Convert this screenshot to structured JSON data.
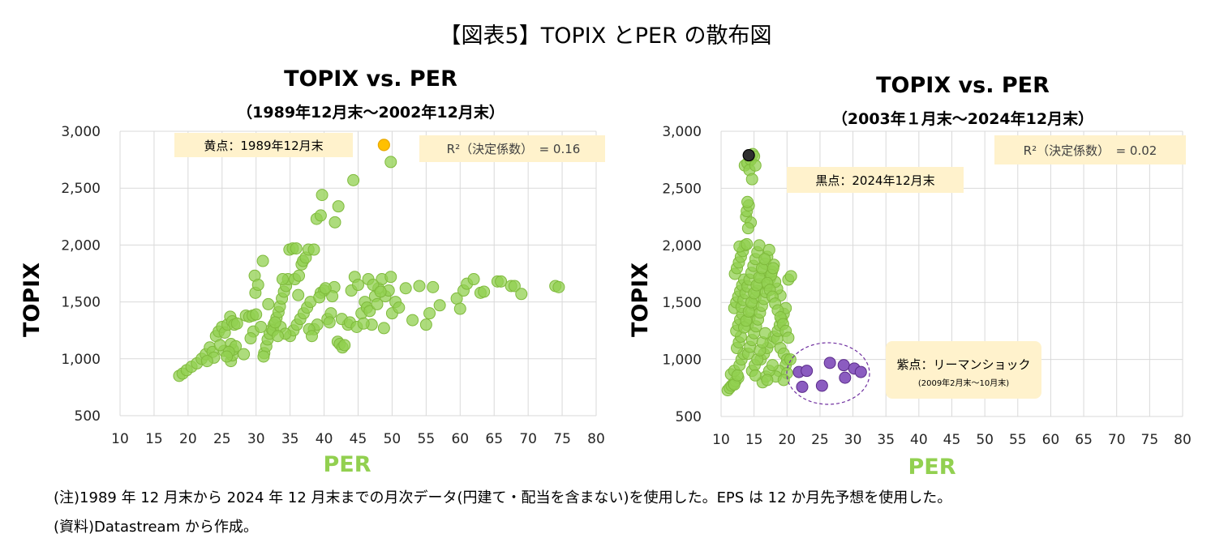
{
  "page_title": "【図表5】TOPIX とPER の散布図",
  "notes": [
    "(注)1989 年 12 月末から 2024 年 12 月末までの月次データ(円建て・配当を含まない)を使用した。EPS は 12 か月先予想を使用した。",
    "(資料)Datastream から作成。"
  ],
  "colors": {
    "green": "#92D050",
    "green_stroke": "#7FBA3C",
    "yellow": "#FFC000",
    "purple": "#7030A0",
    "black": "#000000",
    "label_bg": "#FFF2CC"
  },
  "chart_data": [
    {
      "type": "scatter",
      "title": "TOPIX vs. PER",
      "subtitle": "（1989年12月末～2002年12月末）",
      "xlabel": "PER",
      "ylabel": "TOPIX",
      "xlim": [
        10,
        80
      ],
      "ylim": [
        500,
        3000
      ],
      "xticks": [
        "10",
        "15",
        "20",
        "25",
        "30",
        "35",
        "40",
        "45",
        "50",
        "55",
        "60",
        "65",
        "70",
        "75",
        "80"
      ],
      "yticks": [
        "500",
        "1,000",
        "1,500",
        "2,000",
        "2,500",
        "3,000"
      ],
      "grid": true,
      "annotations": [
        {
          "text": "黄点：1989年12月末"
        },
        {
          "text": "R²（決定係数）　= 0.16"
        }
      ],
      "highlight": {
        "name": "黄点",
        "color": "#FFC000",
        "points": [
          [
            48.8,
            2880
          ]
        ]
      },
      "points": [
        [
          18.7,
          850
        ],
        [
          19.2,
          870
        ],
        [
          19.8,
          900
        ],
        [
          20.5,
          930
        ],
        [
          21.3,
          960
        ],
        [
          22.0,
          1000
        ],
        [
          22.6,
          1040
        ],
        [
          23.2,
          1100
        ],
        [
          23.6,
          1060
        ],
        [
          24.1,
          1200
        ],
        [
          24.5,
          1240
        ],
        [
          25.0,
          1280
        ],
        [
          25.4,
          1230
        ],
        [
          25.8,
          1300
        ],
        [
          26.2,
          1370
        ],
        [
          26.5,
          1330
        ],
        [
          26.8,
          1300
        ],
        [
          27.2,
          1310
        ],
        [
          26.3,
          980
        ],
        [
          26.5,
          1030
        ],
        [
          26.6,
          1080
        ],
        [
          26.3,
          1130
        ],
        [
          25.3,
          1070
        ],
        [
          28.5,
          1380
        ],
        [
          29.0,
          1370
        ],
        [
          29.5,
          1380
        ],
        [
          30.0,
          1390
        ],
        [
          29.6,
          1240
        ],
        [
          29.9,
          1580
        ],
        [
          29.8,
          1730
        ],
        [
          30.3,
          1650
        ],
        [
          31.0,
          1860
        ],
        [
          31.2,
          1050
        ],
        [
          31.5,
          1110
        ],
        [
          31.7,
          1170
        ],
        [
          32.0,
          1220
        ],
        [
          32.3,
          1260
        ],
        [
          32.6,
          1300
        ],
        [
          33.0,
          1360
        ],
        [
          33.3,
          1410
        ],
        [
          33.5,
          1460
        ],
        [
          33.8,
          1530
        ],
        [
          34.1,
          1590
        ],
        [
          34.4,
          1640
        ],
        [
          34.7,
          1700
        ],
        [
          33.9,
          1700
        ],
        [
          34.9,
          1960
        ],
        [
          35.4,
          1970
        ],
        [
          35.9,
          1970
        ],
        [
          36.7,
          1830
        ],
        [
          36.9,
          1860
        ],
        [
          37.3,
          1890
        ],
        [
          37.7,
          1960
        ],
        [
          38.5,
          1960
        ],
        [
          38.9,
          2230
        ],
        [
          39.5,
          2260
        ],
        [
          39.7,
          2440
        ],
        [
          41.6,
          2200
        ],
        [
          42.1,
          2340
        ],
        [
          44.3,
          2570
        ],
        [
          49.8,
          2730
        ],
        [
          35.0,
          1200
        ],
        [
          35.5,
          1250
        ],
        [
          36.0,
          1300
        ],
        [
          36.5,
          1350
        ],
        [
          37.0,
          1400
        ],
        [
          37.5,
          1450
        ],
        [
          38.0,
          1500
        ],
        [
          38.5,
          1260
        ],
        [
          39.0,
          1300
        ],
        [
          39.5,
          1580
        ],
        [
          40.0,
          1600
        ],
        [
          40.5,
          1350
        ],
        [
          41.0,
          1400
        ],
        [
          41.5,
          1630
        ],
        [
          42.0,
          1150
        ],
        [
          42.3,
          1130
        ],
        [
          42.7,
          1100
        ],
        [
          43.0,
          1120
        ],
        [
          43.5,
          1300
        ],
        [
          44.0,
          1600
        ],
        [
          44.5,
          1720
        ],
        [
          45.0,
          1650
        ],
        [
          45.5,
          1400
        ],
        [
          46.0,
          1500
        ],
        [
          46.3,
          1450
        ],
        [
          46.5,
          1700
        ],
        [
          47.0,
          1300
        ],
        [
          47.5,
          1550
        ],
        [
          48.0,
          1620
        ],
        [
          48.5,
          1700
        ],
        [
          49.0,
          1550
        ],
        [
          49.5,
          1600
        ],
        [
          49.8,
          1720
        ],
        [
          50.0,
          1400
        ],
        [
          50.5,
          1500
        ],
        [
          51.0,
          1450
        ],
        [
          52.0,
          1620
        ],
        [
          53.0,
          1340
        ],
        [
          54.0,
          1640
        ],
        [
          55.0,
          1300
        ],
        [
          55.5,
          1400
        ],
        [
          56.0,
          1630
        ],
        [
          57.0,
          1470
        ],
        [
          59.5,
          1530
        ],
        [
          60.0,
          1440
        ],
        [
          60.5,
          1600
        ],
        [
          61.0,
          1660
        ],
        [
          62.0,
          1700
        ],
        [
          63.0,
          1580
        ],
        [
          63.5,
          1590
        ],
        [
          65.5,
          1680
        ],
        [
          66.0,
          1680
        ],
        [
          67.5,
          1640
        ],
        [
          68.0,
          1640
        ],
        [
          69.0,
          1570
        ],
        [
          74.0,
          1640
        ],
        [
          74.5,
          1630
        ],
        [
          32.5,
          1250
        ],
        [
          33.6,
          1280
        ],
        [
          34.3,
          1220
        ],
        [
          36.2,
          1560
        ],
        [
          37.8,
          1260
        ],
        [
          38.2,
          1200
        ],
        [
          40.8,
          1320
        ],
        [
          41.2,
          1550
        ],
        [
          42.6,
          1350
        ],
        [
          43.8,
          1320
        ],
        [
          44.8,
          1280
        ],
        [
          46.7,
          1420
        ],
        [
          47.8,
          1480
        ],
        [
          48.8,
          1270
        ],
        [
          31.8,
          1480
        ],
        [
          32.8,
          1320
        ],
        [
          33.2,
          1200
        ],
        [
          35.7,
          1700
        ],
        [
          36.3,
          1730
        ],
        [
          39.3,
          1540
        ],
        [
          40.2,
          1620
        ],
        [
          45.8,
          1310
        ],
        [
          47.2,
          1650
        ],
        [
          48.3,
          1590
        ],
        [
          28.2,
          1040
        ],
        [
          30.7,
          1280
        ],
        [
          31.1,
          1020
        ],
        [
          29.2,
          1180
        ],
        [
          27.0,
          1110
        ],
        [
          26.0,
          1060
        ],
        [
          25.7,
          1020
        ],
        [
          24.7,
          1120
        ],
        [
          23.8,
          1010
        ],
        [
          22.8,
          980
        ]
      ]
    },
    {
      "type": "scatter",
      "title": "TOPIX vs. PER",
      "subtitle": "（2003年１月末～2024年12月末）",
      "xlabel": "PER",
      "ylabel": "TOPIX",
      "xlim": [
        10,
        80
      ],
      "ylim": [
        500,
        3000
      ],
      "xticks": [
        "10",
        "15",
        "20",
        "25",
        "30",
        "35",
        "40",
        "45",
        "50",
        "55",
        "60",
        "65",
        "70",
        "75",
        "80"
      ],
      "yticks": [
        "500",
        "1,000",
        "1,500",
        "2,000",
        "2,500",
        "3,000"
      ],
      "grid": true,
      "annotations": [
        {
          "text": "R²（決定係数）　= 0.02"
        },
        {
          "text": "黒点：2024年12月末"
        },
        {
          "text": "紫点：リーマンショック"
        },
        {
          "text": "(2009年2月末～10月末)"
        }
      ],
      "highlight": {
        "name": "黒点",
        "color": "#2F2F2F",
        "points": [
          [
            14.2,
            2790
          ]
        ]
      },
      "purple_series": {
        "name": "紫点",
        "points": [
          [
            21.8,
            890
          ],
          [
            23.0,
            900
          ],
          [
            22.3,
            760
          ],
          [
            25.3,
            770
          ],
          [
            26.5,
            970
          ],
          [
            28.6,
            950
          ],
          [
            28.8,
            840
          ],
          [
            30.2,
            920
          ],
          [
            31.2,
            890
          ]
        ]
      },
      "points": [
        [
          11.0,
          730
        ],
        [
          11.3,
          750
        ],
        [
          11.6,
          770
        ],
        [
          11.9,
          790
        ],
        [
          12.2,
          810
        ],
        [
          12.6,
          840
        ],
        [
          11.5,
          870
        ],
        [
          12.0,
          900
        ],
        [
          12.8,
          950
        ],
        [
          13.1,
          1000
        ],
        [
          13.4,
          1050
        ],
        [
          12.4,
          1100
        ],
        [
          12.7,
          1150
        ],
        [
          13.0,
          1200
        ],
        [
          12.3,
          1250
        ],
        [
          12.6,
          1300
        ],
        [
          12.9,
          1350
        ],
        [
          13.2,
          1400
        ],
        [
          12.0,
          1450
        ],
        [
          12.3,
          1500
        ],
        [
          12.6,
          1550
        ],
        [
          12.9,
          1600
        ],
        [
          13.2,
          1650
        ],
        [
          13.5,
          1700
        ],
        [
          12.1,
          1750
        ],
        [
          12.4,
          1800
        ],
        [
          12.7,
          1850
        ],
        [
          13.0,
          1900
        ],
        [
          13.3,
          1950
        ],
        [
          13.6,
          2000
        ],
        [
          12.8,
          1990
        ],
        [
          13.9,
          2010
        ],
        [
          13.1,
          1460
        ],
        [
          13.4,
          1520
        ],
        [
          13.7,
          1580
        ],
        [
          14.0,
          1640
        ],
        [
          14.3,
          1700
        ],
        [
          14.6,
          1760
        ],
        [
          14.9,
          1820
        ],
        [
          15.2,
          1880
        ],
        [
          15.5,
          1940
        ],
        [
          15.8,
          2000
        ],
        [
          14.0,
          1300
        ],
        [
          14.3,
          1360
        ],
        [
          14.6,
          1420
        ],
        [
          14.9,
          1480
        ],
        [
          15.2,
          1540
        ],
        [
          15.5,
          1600
        ],
        [
          15.8,
          1660
        ],
        [
          16.1,
          1720
        ],
        [
          16.4,
          1780
        ],
        [
          16.7,
          1840
        ],
        [
          17.0,
          1900
        ],
        [
          17.3,
          1960
        ],
        [
          14.1,
          1050
        ],
        [
          14.4,
          1110
        ],
        [
          14.7,
          1170
        ],
        [
          15.0,
          1230
        ],
        [
          15.3,
          1290
        ],
        [
          15.6,
          1350
        ],
        [
          15.9,
          1410
        ],
        [
          16.2,
          1470
        ],
        [
          16.5,
          1530
        ],
        [
          16.8,
          1590
        ],
        [
          17.1,
          1650
        ],
        [
          17.4,
          1710
        ],
        [
          17.7,
          1770
        ],
        [
          18.0,
          1830
        ],
        [
          13.8,
          2250
        ],
        [
          13.9,
          2300
        ],
        [
          14.2,
          2350
        ],
        [
          14.0,
          2380
        ],
        [
          14.5,
          2200
        ],
        [
          14.1,
          2150
        ],
        [
          13.6,
          2700
        ],
        [
          14.0,
          2720
        ],
        [
          14.5,
          2750
        ],
        [
          14.8,
          2800
        ],
        [
          15.0,
          2780
        ],
        [
          14.3,
          2660
        ],
        [
          14.7,
          2580
        ],
        [
          15.2,
          2700
        ],
        [
          16.0,
          1000
        ],
        [
          16.5,
          1050
        ],
        [
          17.0,
          1100
        ],
        [
          17.5,
          1150
        ],
        [
          18.0,
          1200
        ],
        [
          18.5,
          1180
        ],
        [
          19.0,
          1100
        ],
        [
          19.5,
          1050
        ],
        [
          20.0,
          1000
        ],
        [
          19.8,
          950
        ],
        [
          18.8,
          900
        ],
        [
          18.3,
          850
        ],
        [
          16.3,
          800
        ],
        [
          16.8,
          850
        ],
        [
          17.3,
          900
        ],
        [
          17.8,
          950
        ],
        [
          18.6,
          1250
        ],
        [
          18.9,
          1300
        ],
        [
          19.2,
          1350
        ],
        [
          19.5,
          1400
        ],
        [
          19.8,
          1450
        ],
        [
          20.2,
          1700
        ],
        [
          20.6,
          1730
        ],
        [
          19.0,
          1560
        ],
        [
          18.5,
          1620
        ],
        [
          18.2,
          1680
        ],
        [
          17.6,
          1740
        ],
        [
          17.9,
          1800
        ],
        [
          14.7,
          900
        ],
        [
          15.1,
          950
        ],
        [
          15.5,
          1000
        ],
        [
          15.9,
          1080
        ],
        [
          16.3,
          1150
        ],
        [
          16.7,
          1230
        ],
        [
          12.0,
          780
        ],
        [
          12.5,
          860
        ],
        [
          13.5,
          1280
        ],
        [
          13.8,
          1340
        ],
        [
          14.2,
          1420
        ],
        [
          14.6,
          1500
        ],
        [
          15.0,
          1580
        ],
        [
          15.4,
          1650
        ],
        [
          15.8,
          1720
        ],
        [
          16.2,
          1800
        ],
        [
          16.6,
          1880
        ],
        [
          17.0,
          1670
        ],
        [
          17.4,
          1610
        ],
        [
          17.8,
          1550
        ],
        [
          18.2,
          1490
        ],
        [
          18.6,
          1430
        ],
        [
          19.0,
          1370
        ],
        [
          19.4,
          1310
        ],
        [
          19.8,
          1250
        ],
        [
          20.2,
          1190
        ],
        [
          20.5,
          1000
        ],
        [
          20.0,
          880
        ],
        [
          19.5,
          820
        ],
        [
          17.0,
          820
        ],
        [
          15.2,
          860
        ]
      ]
    }
  ]
}
